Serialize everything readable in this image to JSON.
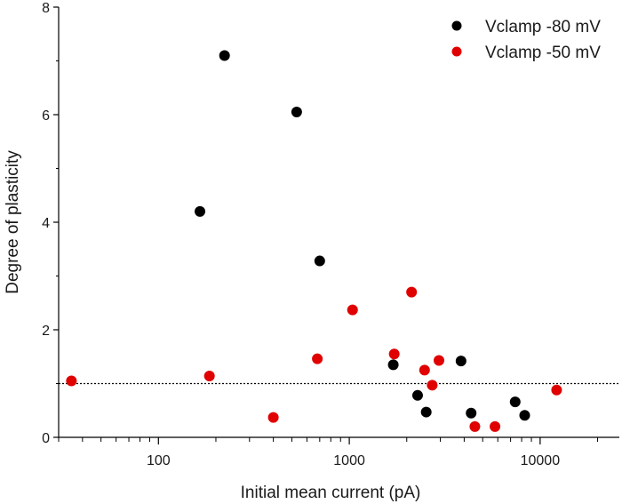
{
  "chart_data": {
    "type": "scatter",
    "xlabel": "Initial mean current (pA)",
    "ylabel": "Degree of plasticity",
    "x_scale": "log",
    "xlim": [
      30,
      26000
    ],
    "ylim": [
      0,
      8
    ],
    "x_ticks": [
      100,
      1000,
      10000
    ],
    "x_tick_labels": [
      "100",
      "1000",
      "10000"
    ],
    "y_ticks": [
      0,
      2,
      4,
      6,
      8
    ],
    "y_tick_labels": [
      "0",
      "2",
      "4",
      "6",
      "8"
    ],
    "reference_line": {
      "y": 1,
      "style": "dotted"
    },
    "grid": false,
    "legend_position": "top-right",
    "series": [
      {
        "name": "Vclamp -80 mV",
        "color": "#000000",
        "points": [
          [
            165,
            4.2
          ],
          [
            222,
            7.1
          ],
          [
            530,
            6.05
          ],
          [
            700,
            3.28
          ],
          [
            1700,
            1.35
          ],
          [
            2280,
            0.78
          ],
          [
            2530,
            0.47
          ],
          [
            3850,
            1.42
          ],
          [
            4350,
            0.45
          ],
          [
            7400,
            0.66
          ],
          [
            8300,
            0.41
          ]
        ]
      },
      {
        "name": "Vclamp -50 mV",
        "color": "#e00000",
        "points": [
          [
            35,
            1.05
          ],
          [
            185,
            1.14
          ],
          [
            400,
            0.37
          ],
          [
            680,
            1.46
          ],
          [
            1040,
            2.37
          ],
          [
            1720,
            1.55
          ],
          [
            2120,
            2.7
          ],
          [
            2480,
            1.25
          ],
          [
            2720,
            0.97
          ],
          [
            2950,
            1.43
          ],
          [
            4550,
            0.2
          ],
          [
            5800,
            0.2
          ],
          [
            12200,
            0.88
          ]
        ]
      }
    ]
  }
}
